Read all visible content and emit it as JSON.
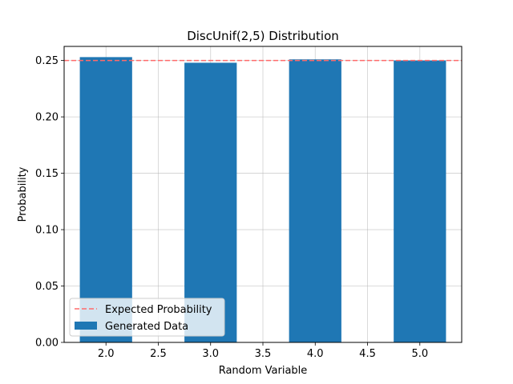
{
  "chart_data": {
    "type": "bar",
    "title": "DiscUnif(2,5) Distribution",
    "xlabel": "Random Variable",
    "ylabel": "Probability",
    "x": [
      2,
      3,
      4,
      5
    ],
    "series": [
      {
        "name": "Generated Data",
        "values": [
          0.253,
          0.248,
          0.251,
          0.25
        ],
        "color": "#1f77b4"
      }
    ],
    "reference_line": {
      "name": "Expected Probability",
      "y": 0.25,
      "color": "#ff6b6b",
      "style": "dashed"
    },
    "bar_width": 0.5,
    "xlim": [
      1.6,
      5.4
    ],
    "ylim": [
      0,
      0.2625
    ],
    "xticks": [
      2.0,
      2.5,
      3.0,
      3.5,
      4.0,
      4.5,
      5.0
    ],
    "xtick_labels": [
      "2.0",
      "2.5",
      "3.0",
      "3.5",
      "4.0",
      "4.5",
      "5.0"
    ],
    "yticks": [
      0.0,
      0.05,
      0.1,
      0.15,
      0.2,
      0.25
    ],
    "ytick_labels": [
      "0.00",
      "0.05",
      "0.10",
      "0.15",
      "0.20",
      "0.25"
    ],
    "grid": true,
    "legend_position": "lower-left"
  }
}
